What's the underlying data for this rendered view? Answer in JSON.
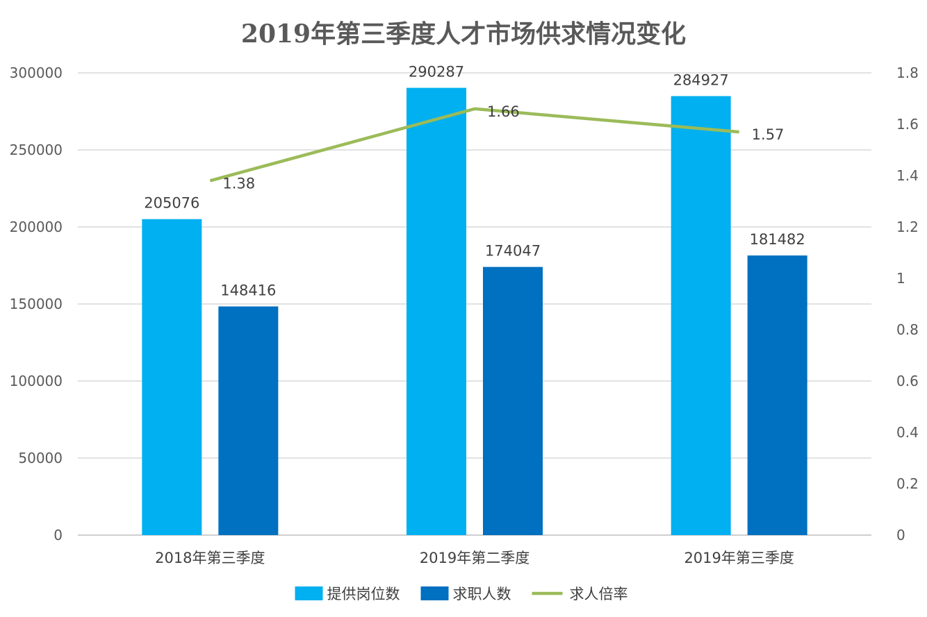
{
  "chart_data": {
    "type": "bar",
    "title": "2019年第三季度人才市场供求情况变化",
    "categories": [
      "2018年第三季度",
      "2019年第二季度",
      "2019年第三季度"
    ],
    "series": [
      {
        "name": "提供岗位数",
        "type": "bar",
        "axis": "left",
        "color": "#00B0F0",
        "values": [
          205076,
          290287,
          284927
        ]
      },
      {
        "name": "求职人数",
        "type": "bar",
        "axis": "left",
        "color": "#0070C0",
        "values": [
          148416,
          174047,
          181482
        ]
      },
      {
        "name": "求人倍率",
        "type": "line",
        "axis": "right",
        "color": "#9BBB59",
        "values": [
          1.38,
          1.66,
          1.57
        ]
      }
    ],
    "y_left": {
      "min": 0,
      "max": 300000,
      "ticks": [
        "0",
        "50000",
        "100000",
        "150000",
        "200000",
        "250000",
        "300000"
      ]
    },
    "y_right": {
      "min": 0,
      "max": 1.8,
      "ticks": [
        "0",
        "0.2",
        "0.4",
        "0.6",
        "0.8",
        "1",
        "1.2",
        "1.4",
        "1.6",
        "1.8"
      ]
    },
    "grid": true,
    "legend_position": "bottom",
    "data_labels": true
  }
}
